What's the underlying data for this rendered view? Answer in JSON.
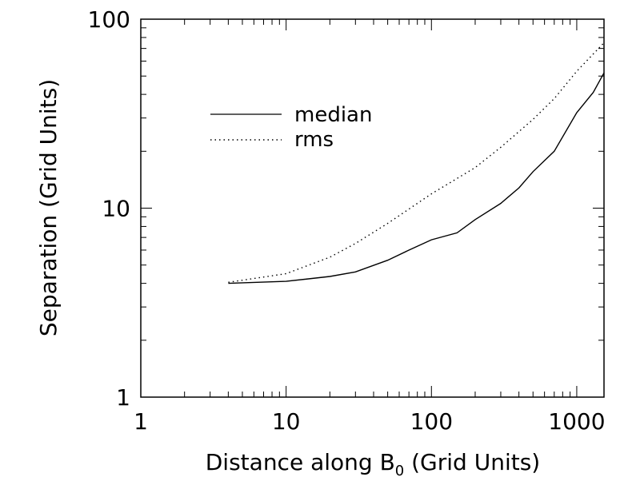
{
  "chart_data": {
    "type": "line",
    "title": "",
    "xlabel": "Distance along B",
    "xlabel_sub": "0",
    "xlabel_suffix": " (Grid Units)",
    "ylabel": "Separation (Grid Units)",
    "xscale": "log",
    "yscale": "log",
    "xlim": [
      1,
      1540
    ],
    "ylim": [
      1,
      100
    ],
    "xticks": [
      {
        "v": 1,
        "label": "1"
      },
      {
        "v": 10,
        "label": "10"
      },
      {
        "v": 100,
        "label": "100"
      },
      {
        "v": 1000,
        "label": "1000"
      }
    ],
    "yticks": [
      {
        "v": 1,
        "label": "1"
      },
      {
        "v": 10,
        "label": "10"
      },
      {
        "v": 100,
        "label": "100"
      }
    ],
    "legend_position": "top-left",
    "series": [
      {
        "name": "median",
        "style": "solid",
        "x": [
          4,
          10,
          20,
          30,
          50,
          70,
          100,
          150,
          200,
          300,
          400,
          500,
          700,
          1000,
          1300,
          1540
        ],
        "y": [
          4.0,
          4.1,
          4.35,
          4.6,
          5.3,
          6.0,
          6.8,
          7.4,
          8.7,
          10.6,
          12.8,
          15.6,
          20,
          32,
          41,
          52
        ]
      },
      {
        "name": "rms",
        "style": "dotted",
        "x": [
          4,
          10,
          20,
          30,
          50,
          100,
          200,
          300,
          500,
          700,
          1000,
          1540
        ],
        "y": [
          4.05,
          4.5,
          5.5,
          6.5,
          8.3,
          11.9,
          16.4,
          21,
          29.5,
          38,
          53,
          75
        ]
      }
    ]
  }
}
